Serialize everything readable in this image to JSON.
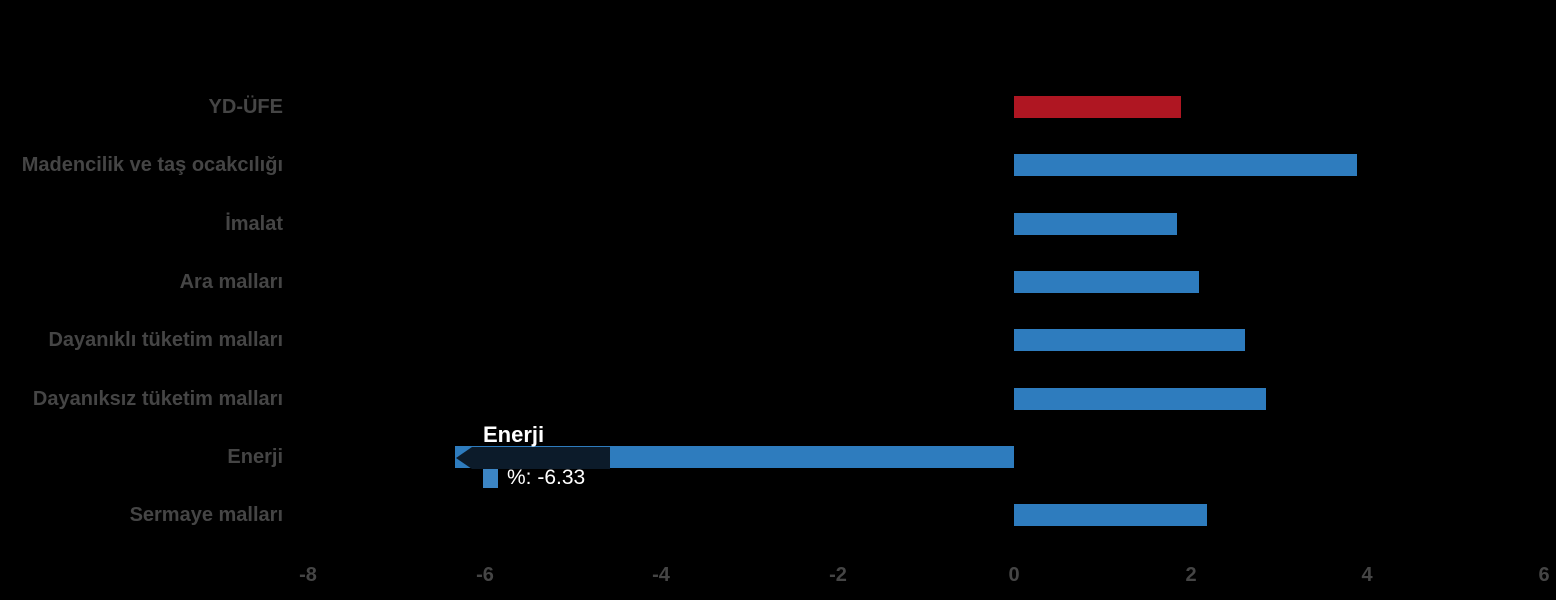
{
  "colors": {
    "background": "#000000",
    "bar_blue": "#2e7cbe",
    "bar_red": "#af1622",
    "label_gray": "#454545",
    "tooltip_bg": "#0c1b2a",
    "tooltip_text": "#ffffff",
    "tooltip_marker_blue": "#3c85c4"
  },
  "chart_data": {
    "type": "bar",
    "orientation": "horizontal",
    "title": "",
    "xlabel": "",
    "ylabel": "",
    "xlim": [
      -8,
      6
    ],
    "x_ticks": [
      -8,
      -6,
      -4,
      -2,
      0,
      2,
      4,
      6
    ],
    "grid": false,
    "legend": false,
    "value_unit": "%",
    "categories": [
      "YD-ÜFE",
      "Madencilik ve taş ocakcılığı",
      "İmalat",
      "Ara malları",
      "Dayanıklı tüketim malları",
      "Dayanıksız tüketim malları",
      "Enerji",
      "Sermaye malları"
    ],
    "values": [
      1.89,
      3.89,
      1.85,
      2.1,
      2.62,
      2.86,
      -6.33,
      2.19
    ],
    "bar_colors": [
      "red",
      "blue",
      "blue",
      "blue",
      "blue",
      "blue",
      "blue",
      "blue"
    ]
  },
  "tooltip": {
    "category": "Enerji",
    "value_label": "%: -6.33"
  }
}
